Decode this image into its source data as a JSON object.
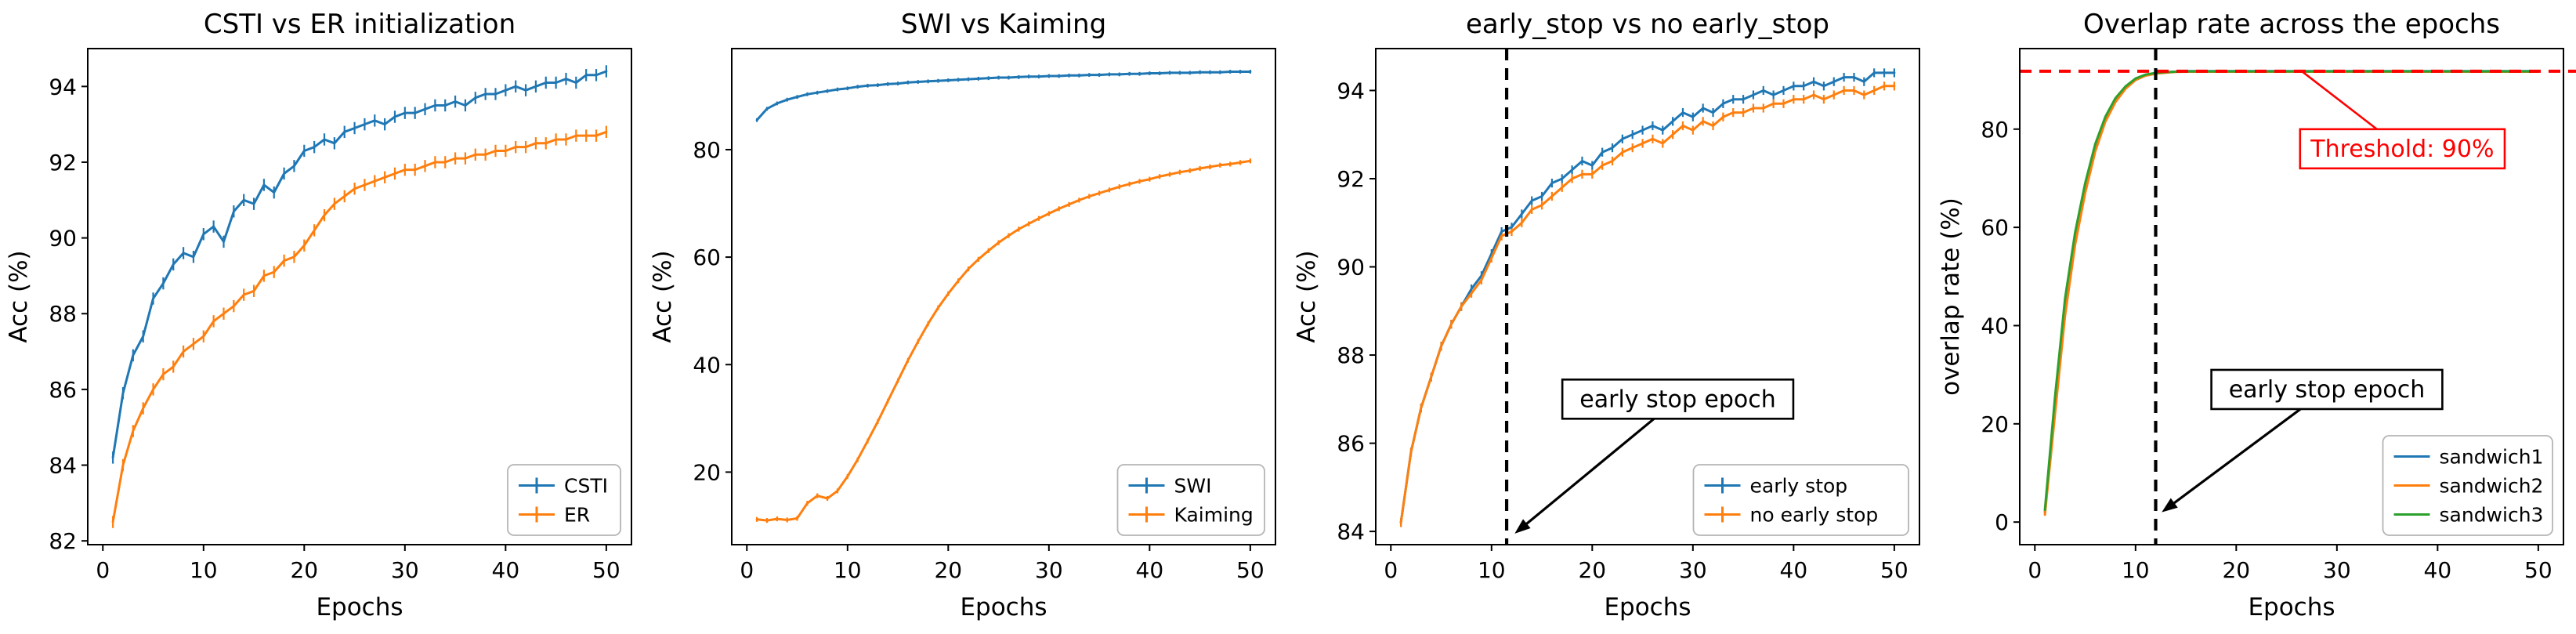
{
  "figure": {
    "background": "#ffffff",
    "accent_colors": {
      "blue": "#1f77b4",
      "orange": "#ff7f0e",
      "green": "#2ca02c",
      "red": "#ff0000",
      "black": "#000000"
    }
  },
  "chart_data": [
    {
      "type": "line",
      "title": "CSTI vs ER initialization",
      "xlabel": "Epochs",
      "ylabel": "Acc (%)",
      "xlim": [
        -1.5,
        52.5
      ],
      "ylim": [
        81.9,
        95.0
      ],
      "xticks": [
        0,
        10,
        20,
        30,
        40,
        50
      ],
      "yticks": [
        82,
        84,
        86,
        88,
        90,
        92,
        94
      ],
      "x_start": 1,
      "grid": false,
      "legend": {
        "position": "lower right",
        "marker": "errorbar"
      },
      "series": [
        {
          "name": "CSTI",
          "color": "#1f77b4",
          "err": 0.16,
          "values": [
            84.2,
            85.9,
            86.9,
            87.4,
            88.4,
            88.8,
            89.3,
            89.6,
            89.5,
            90.1,
            90.3,
            89.9,
            90.7,
            91.0,
            90.9,
            91.4,
            91.2,
            91.7,
            91.9,
            92.3,
            92.4,
            92.6,
            92.5,
            92.8,
            92.9,
            93.0,
            93.1,
            93.0,
            93.2,
            93.3,
            93.3,
            93.4,
            93.5,
            93.5,
            93.6,
            93.5,
            93.7,
            93.8,
            93.8,
            93.9,
            94.0,
            93.9,
            94.0,
            94.1,
            94.1,
            94.2,
            94.1,
            94.3,
            94.3,
            94.4
          ]
        },
        {
          "name": "ER",
          "color": "#ff7f0e",
          "err": 0.16,
          "values": [
            82.5,
            84.0,
            84.9,
            85.5,
            86.0,
            86.4,
            86.6,
            87.0,
            87.2,
            87.4,
            87.8,
            88.0,
            88.2,
            88.5,
            88.6,
            89.0,
            89.1,
            89.4,
            89.5,
            89.8,
            90.2,
            90.6,
            90.9,
            91.1,
            91.3,
            91.4,
            91.5,
            91.6,
            91.7,
            91.8,
            91.8,
            91.9,
            92.0,
            92.0,
            92.1,
            92.1,
            92.2,
            92.2,
            92.3,
            92.3,
            92.4,
            92.4,
            92.5,
            92.5,
            92.6,
            92.6,
            92.7,
            92.7,
            92.7,
            92.8
          ]
        }
      ],
      "annotations": []
    },
    {
      "type": "line",
      "title": "SWI vs Kaiming",
      "xlabel": "Epochs",
      "ylabel": "Acc (%)",
      "xlim": [
        -1.5,
        52.5
      ],
      "ylim": [
        6.5,
        98.8
      ],
      "xticks": [
        0,
        10,
        20,
        30,
        40,
        50
      ],
      "yticks": [
        20,
        40,
        60,
        80
      ],
      "x_start": 1,
      "grid": false,
      "legend": {
        "position": "lower right",
        "marker": "errorbar"
      },
      "series": [
        {
          "name": "SWI",
          "color": "#1f77b4",
          "err": 0.35,
          "values": [
            85.5,
            87.6,
            88.6,
            89.3,
            89.8,
            90.3,
            90.6,
            90.9,
            91.2,
            91.4,
            91.7,
            91.9,
            92.0,
            92.2,
            92.3,
            92.5,
            92.6,
            92.7,
            92.8,
            92.9,
            93.0,
            93.1,
            93.2,
            93.3,
            93.4,
            93.4,
            93.5,
            93.6,
            93.6,
            93.7,
            93.7,
            93.8,
            93.8,
            93.9,
            93.9,
            94.0,
            94.0,
            94.1,
            94.1,
            94.2,
            94.2,
            94.3,
            94.3,
            94.3,
            94.4,
            94.4,
            94.4,
            94.5,
            94.5,
            94.5
          ]
        },
        {
          "name": "Kaiming",
          "color": "#ff7f0e",
          "err": 0.45,
          "values": [
            11.2,
            11.0,
            11.3,
            11.1,
            11.4,
            14.2,
            15.6,
            15.1,
            16.5,
            19.2,
            22.3,
            25.8,
            29.4,
            33.2,
            37.0,
            40.8,
            44.3,
            47.6,
            50.6,
            53.2,
            55.6,
            57.8,
            59.6,
            61.2,
            62.7,
            64.0,
            65.2,
            66.2,
            67.2,
            68.1,
            69.0,
            69.8,
            70.6,
            71.3,
            71.9,
            72.5,
            73.1,
            73.6,
            74.1,
            74.5,
            75.0,
            75.4,
            75.8,
            76.1,
            76.5,
            76.8,
            77.1,
            77.3,
            77.6,
            77.9
          ]
        }
      ],
      "annotations": []
    },
    {
      "type": "line",
      "title": "early_stop vs no early_stop",
      "xlabel": "Epochs",
      "ylabel": "Acc (%)",
      "xlim": [
        -1.5,
        52.5
      ],
      "ylim": [
        83.7,
        94.95
      ],
      "xticks": [
        0,
        10,
        20,
        30,
        40,
        50
      ],
      "yticks": [
        84,
        86,
        88,
        90,
        92,
        94
      ],
      "x_start": 1,
      "grid": false,
      "legend": {
        "position": "lower right",
        "marker": "errorbar"
      },
      "series": [
        {
          "name": "early stop",
          "color": "#1f77b4",
          "err": 0.1,
          "values": [
            84.2,
            85.8,
            86.8,
            87.5,
            88.2,
            88.7,
            89.1,
            89.5,
            89.8,
            90.3,
            90.8,
            90.9,
            91.2,
            91.5,
            91.6,
            91.9,
            92.0,
            92.2,
            92.4,
            92.3,
            92.6,
            92.7,
            92.9,
            93.0,
            93.1,
            93.2,
            93.1,
            93.3,
            93.5,
            93.4,
            93.6,
            93.5,
            93.7,
            93.8,
            93.8,
            93.9,
            94.0,
            93.9,
            94.0,
            94.1,
            94.1,
            94.2,
            94.1,
            94.2,
            94.3,
            94.3,
            94.2,
            94.4,
            94.4,
            94.4
          ]
        },
        {
          "name": "no early stop",
          "color": "#ff7f0e",
          "err": 0.1,
          "values": [
            84.2,
            85.8,
            86.8,
            87.5,
            88.2,
            88.7,
            89.1,
            89.4,
            89.7,
            90.2,
            90.7,
            90.8,
            91.0,
            91.3,
            91.4,
            91.6,
            91.8,
            92.0,
            92.1,
            92.1,
            92.3,
            92.4,
            92.6,
            92.7,
            92.8,
            92.9,
            92.8,
            93.0,
            93.2,
            93.1,
            93.3,
            93.2,
            93.4,
            93.5,
            93.5,
            93.6,
            93.6,
            93.7,
            93.7,
            93.8,
            93.8,
            93.9,
            93.8,
            93.9,
            94.0,
            94.0,
            93.9,
            94.0,
            94.1,
            94.1
          ]
        }
      ],
      "annotations": [
        {
          "kind": "vline",
          "x": 11.5,
          "color": "#000000"
        },
        {
          "kind": "arrowbox",
          "text": "early stop epoch",
          "cx": 28.5,
          "cy": 87.0,
          "border": "#000000",
          "text_color": "#000000",
          "arrow_to": [
            12.3,
            83.95
          ],
          "arrow_color": "#000000"
        }
      ]
    },
    {
      "type": "line",
      "title": "Overlap rate across the epochs",
      "xlabel": "Epochs",
      "ylabel": "overlap rate (%)",
      "xlim": [
        -1.5,
        52.5
      ],
      "ylim": [
        -4.6,
        96.4
      ],
      "xticks": [
        0,
        10,
        20,
        30,
        40,
        50
      ],
      "yticks": [
        0,
        20,
        40,
        60,
        80
      ],
      "x_start": 1,
      "grid": false,
      "legend": {
        "position": "lower right",
        "marker": "line"
      },
      "series": [
        {
          "name": "sandwich1",
          "color": "#1f77b4",
          "values": [
            2.0,
            24.0,
            44.0,
            58.0,
            68.0,
            76.0,
            82.0,
            86.0,
            88.5,
            90.2,
            91.0,
            91.4,
            91.6,
            91.7,
            91.8,
            91.8,
            91.8,
            91.8,
            91.8,
            91.8,
            91.8,
            91.8,
            91.8,
            91.8,
            91.8,
            91.8,
            91.8,
            91.8,
            91.8,
            91.8,
            91.8,
            91.8,
            91.8,
            91.8,
            91.8,
            91.8,
            91.8,
            91.8,
            91.8,
            91.8,
            91.8,
            91.8,
            91.8,
            91.8,
            91.8,
            91.8,
            91.8,
            91.8,
            91.8,
            91.8
          ]
        },
        {
          "name": "sandwich2",
          "color": "#ff7f0e",
          "values": [
            1.5,
            22.0,
            42.0,
            56.5,
            67.0,
            75.5,
            81.5,
            85.5,
            88.2,
            90.0,
            90.9,
            91.3,
            91.5,
            91.65,
            91.7,
            91.7,
            91.7,
            91.7,
            91.7,
            91.7,
            91.7,
            91.7,
            91.7,
            91.7,
            91.7,
            91.7,
            91.7,
            91.7,
            91.7,
            91.7,
            91.7,
            91.7,
            91.7,
            91.7,
            91.7,
            91.7,
            91.7,
            91.7,
            91.7,
            91.7,
            91.7,
            91.7,
            91.7,
            91.7,
            91.7,
            91.7,
            91.7,
            91.7,
            91.7,
            91.7
          ]
        },
        {
          "name": "sandwich3",
          "color": "#2ca02c",
          "values": [
            2.5,
            25.5,
            45.5,
            59.0,
            69.0,
            77.0,
            82.5,
            86.3,
            88.7,
            90.3,
            91.1,
            91.45,
            91.62,
            91.7,
            91.75,
            91.75,
            91.75,
            91.75,
            91.75,
            91.75,
            91.75,
            91.75,
            91.75,
            91.75,
            91.75,
            91.75,
            91.75,
            91.75,
            91.75,
            91.75,
            91.75,
            91.75,
            91.75,
            91.75,
            91.75,
            91.75,
            91.75,
            91.75,
            91.75,
            91.75,
            91.75,
            91.75,
            91.75,
            91.75,
            91.75,
            91.75,
            91.75,
            91.75,
            91.75,
            91.75
          ]
        }
      ],
      "annotations": [
        {
          "kind": "hline",
          "y": 91.8,
          "color": "#ff0000"
        },
        {
          "kind": "vline",
          "x": 12,
          "color": "#000000"
        },
        {
          "kind": "box",
          "text": "Threshold: 90%",
          "cx": 36.5,
          "cy": 76.0,
          "border": "#ff0000",
          "text_color": "#ff0000",
          "connector_to": [
            26.5,
            91.8
          ],
          "connector_color": "#ff0000"
        },
        {
          "kind": "arrowbox",
          "text": "early stop epoch",
          "cx": 29.0,
          "cy": 27.0,
          "border": "#000000",
          "text_color": "#000000",
          "arrow_to": [
            12.6,
            2.0
          ],
          "arrow_color": "#000000"
        }
      ]
    }
  ]
}
